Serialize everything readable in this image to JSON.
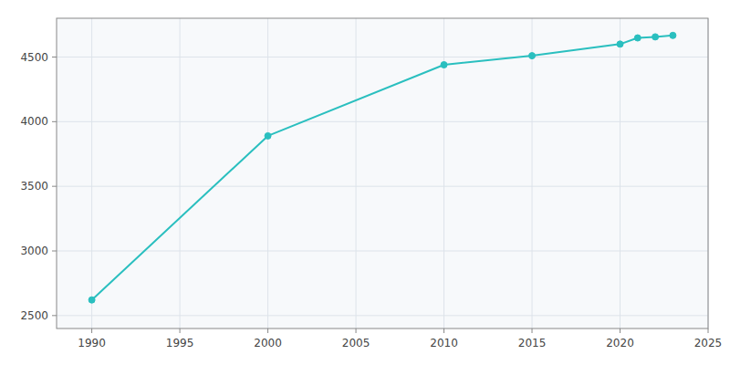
{
  "chart_data": {
    "type": "line",
    "x": [
      1990,
      2000,
      2010,
      2015,
      2020,
      2021,
      2022,
      2023
    ],
    "values": [
      2621,
      3890,
      4440,
      4510,
      4600,
      4648,
      4656,
      4667
    ],
    "color": "#2abfbf",
    "marker": "circle",
    "xlim": [
      1988,
      2025
    ],
    "ylim": [
      2400,
      4800
    ],
    "xticks": [
      1990,
      1995,
      2000,
      2005,
      2010,
      2015,
      2020,
      2025
    ],
    "yticks": [
      2500,
      3000,
      3500,
      4000,
      4500
    ],
    "grid": true
  }
}
